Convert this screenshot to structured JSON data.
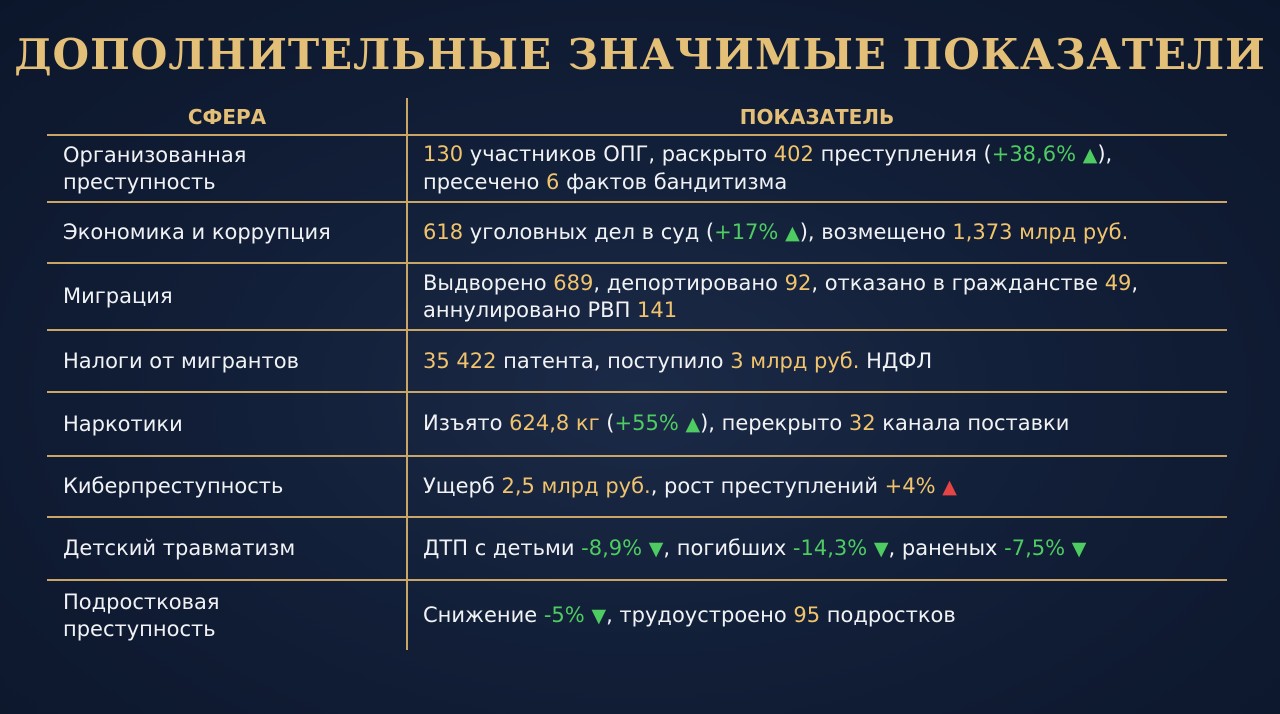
{
  "title": "ДОПОЛНИТЕЛЬНЫЕ ЗНАЧИМЫЕ ПОКАЗАТЕЛИ",
  "header": {
    "col1": "СФЕРА",
    "col2": "ПОКАЗАТЕЛЬ"
  },
  "rows": [
    {
      "sphere_l1": "Организованная",
      "sphere_l2": "преступность",
      "t1": "130",
      "t2": " участников ОПГ, раскрыто ",
      "t3": "402",
      "t4": " преступления (",
      "t5": "+38,6%",
      "t6": "),",
      "t7": "пресечено ",
      "t8": "6",
      "t9": " фактов бандитизма"
    },
    {
      "sphere": "Экономика и коррупция",
      "t1": "618",
      "t2": " уголовных дел в суд (",
      "t3": "+17%",
      "t4": "), возмещено ",
      "t5": "1,373 млрд руб."
    },
    {
      "sphere": "Миграция",
      "t1": "Выдворено ",
      "t2": "689",
      "t3": ", депортировано ",
      "t4": "92",
      "t5": ", отказано в гражданстве ",
      "t6": "49",
      "t7": ",",
      "t8": "аннулировано РВП ",
      "t9": "141"
    },
    {
      "sphere": "Налоги от мигрантов",
      "t1": "35 422",
      "t2": " патента, поступило ",
      "t3": "3 млрд руб.",
      "t4": " НДФЛ"
    },
    {
      "sphere": "Наркотики",
      "t1": "Изъято ",
      "t2": "624,8 кг",
      "t3": " (",
      "t4": "+55%",
      "t5": "), перекрыто ",
      "t6": "32",
      "t7": " канала поставки"
    },
    {
      "sphere": "Киберпреступность",
      "t1": "Ущерб ",
      "t2": "2,5 млрд руб.",
      "t3": ", рост преступлений ",
      "t4": "+4%"
    },
    {
      "sphere": "Детский травматизм",
      "t1": "ДТП с детьми ",
      "t2": "-8,9%",
      "t3": ", погибших ",
      "t4": "-14,3%",
      "t5": ", раненых ",
      "t6": "-7,5%"
    },
    {
      "sphere_l1": "Подростковая",
      "sphere_l2": "преступность",
      "t1": "Снижение ",
      "t2": "-5%",
      "t3": ", трудоустроено ",
      "t4": "95",
      "t5": " подростков"
    }
  ],
  "icons": {
    "up": "▲",
    "down": "▼"
  },
  "colors": {
    "gold": "#e3bf78",
    "highlight": "#f0c36c",
    "green": "#4ecb61",
    "red": "#e64545",
    "background": "#121f38"
  }
}
